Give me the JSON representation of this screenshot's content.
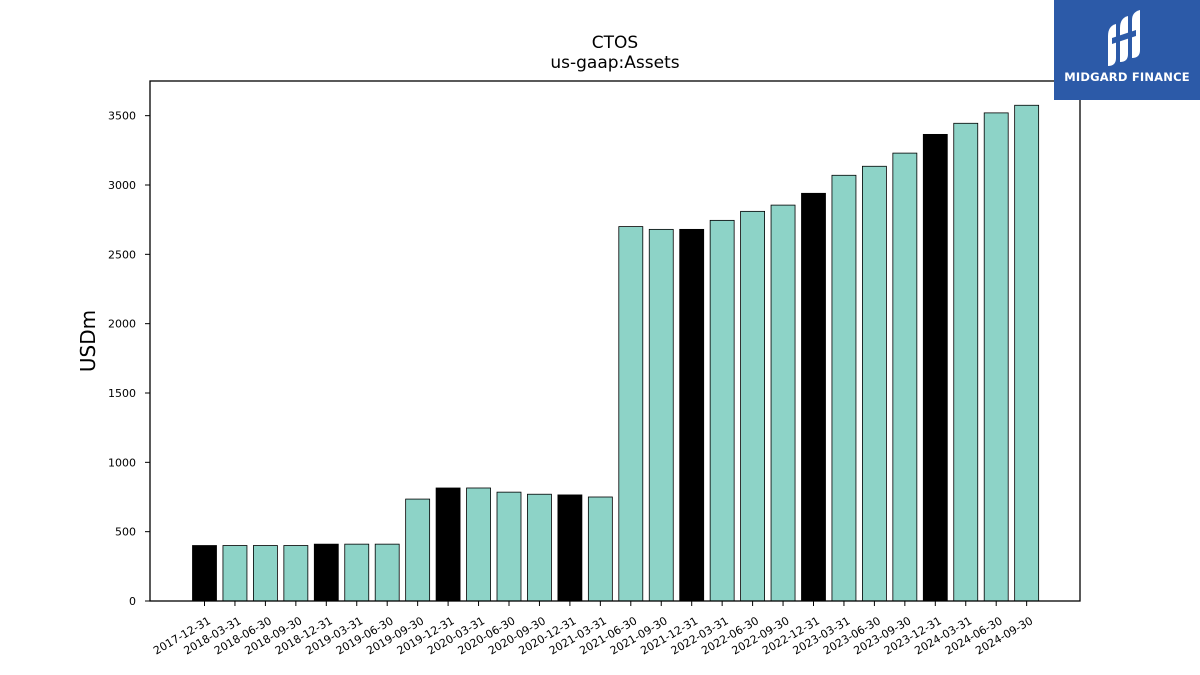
{
  "chart_data": {
    "type": "bar",
    "title": "CTOS",
    "subtitle": "us-gaap:Assets",
    "xlabel": "",
    "ylabel": "USDm",
    "ylim": [
      0,
      3750
    ],
    "yticks": [
      0,
      500,
      1000,
      1500,
      2000,
      2500,
      3000,
      3500
    ],
    "categories": [
      "2017-12-31",
      "2018-03-31",
      "2018-06-30",
      "2018-09-30",
      "2018-12-31",
      "2019-03-31",
      "2019-06-30",
      "2019-09-30",
      "2019-12-31",
      "2020-03-31",
      "2020-06-30",
      "2020-09-30",
      "2020-12-31",
      "2021-03-31",
      "2021-06-30",
      "2021-09-30",
      "2021-12-31",
      "2022-03-31",
      "2022-06-30",
      "2022-09-30",
      "2022-12-31",
      "2023-03-31",
      "2023-06-30",
      "2023-09-30",
      "2023-12-31",
      "2024-03-31",
      "2024-06-30",
      "2024-09-30"
    ],
    "values": [
      400,
      400,
      400,
      400,
      410,
      410,
      410,
      735,
      815,
      815,
      785,
      770,
      765,
      750,
      2700,
      2680,
      2680,
      2745,
      2810,
      2855,
      2940,
      3070,
      3135,
      3230,
      3365,
      3445,
      3520,
      3575
    ],
    "annual": [
      true,
      false,
      false,
      false,
      true,
      false,
      false,
      false,
      true,
      false,
      false,
      false,
      true,
      false,
      false,
      false,
      true,
      false,
      false,
      false,
      true,
      false,
      false,
      false,
      true,
      false,
      false,
      false
    ],
    "colors": {
      "quarterly": "#8dd3c7",
      "annual": "#000000",
      "edge": "#000000"
    },
    "grid": false,
    "legend": "none"
  },
  "logo": {
    "text": "MIDGARD FINANCE",
    "background": "#2c5aa8"
  }
}
